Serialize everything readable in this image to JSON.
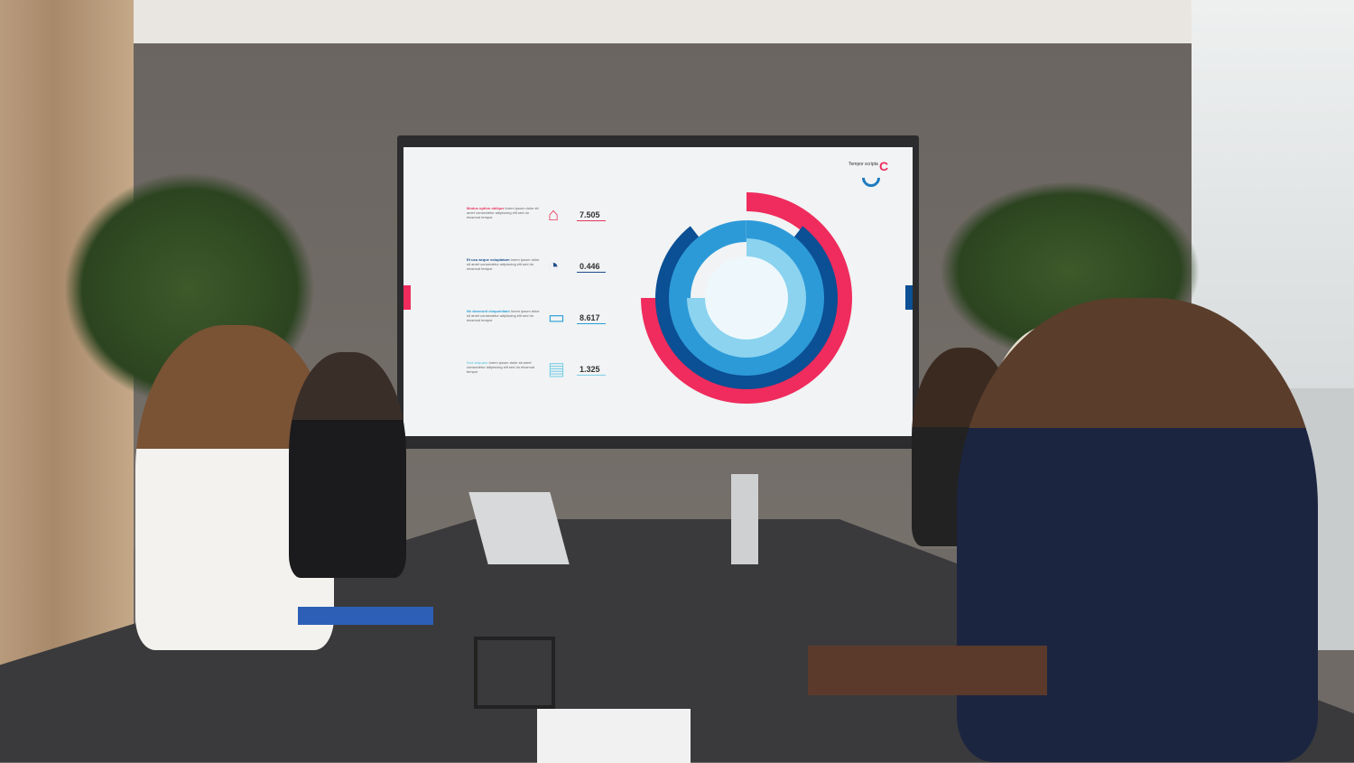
{
  "screen": {
    "logo_text": "Tempor scripta",
    "items": [
      {
        "heading": "Modus option oblique",
        "value": "7.505",
        "icon": "house-icon",
        "color": "#e8365e"
      },
      {
        "heading": "Et usu aeque voluptatum",
        "value": "0.446",
        "icon": "pie-chart-icon",
        "color": "#1f4e8c"
      },
      {
        "heading": "Ne deserunt eloquentiam",
        "value": "8.617",
        "icon": "monitor-icon",
        "color": "#2a9fd6"
      },
      {
        "heading": "Sed aliquam",
        "value": "1.325",
        "icon": "chat-icon",
        "color": "#7fcfe8"
      }
    ],
    "colors": {
      "pink": "#ef2c5d",
      "dark_blue": "#0b4f94",
      "mid_blue": "#2d9ad8",
      "light_blue": "#8bd3ef"
    }
  }
}
